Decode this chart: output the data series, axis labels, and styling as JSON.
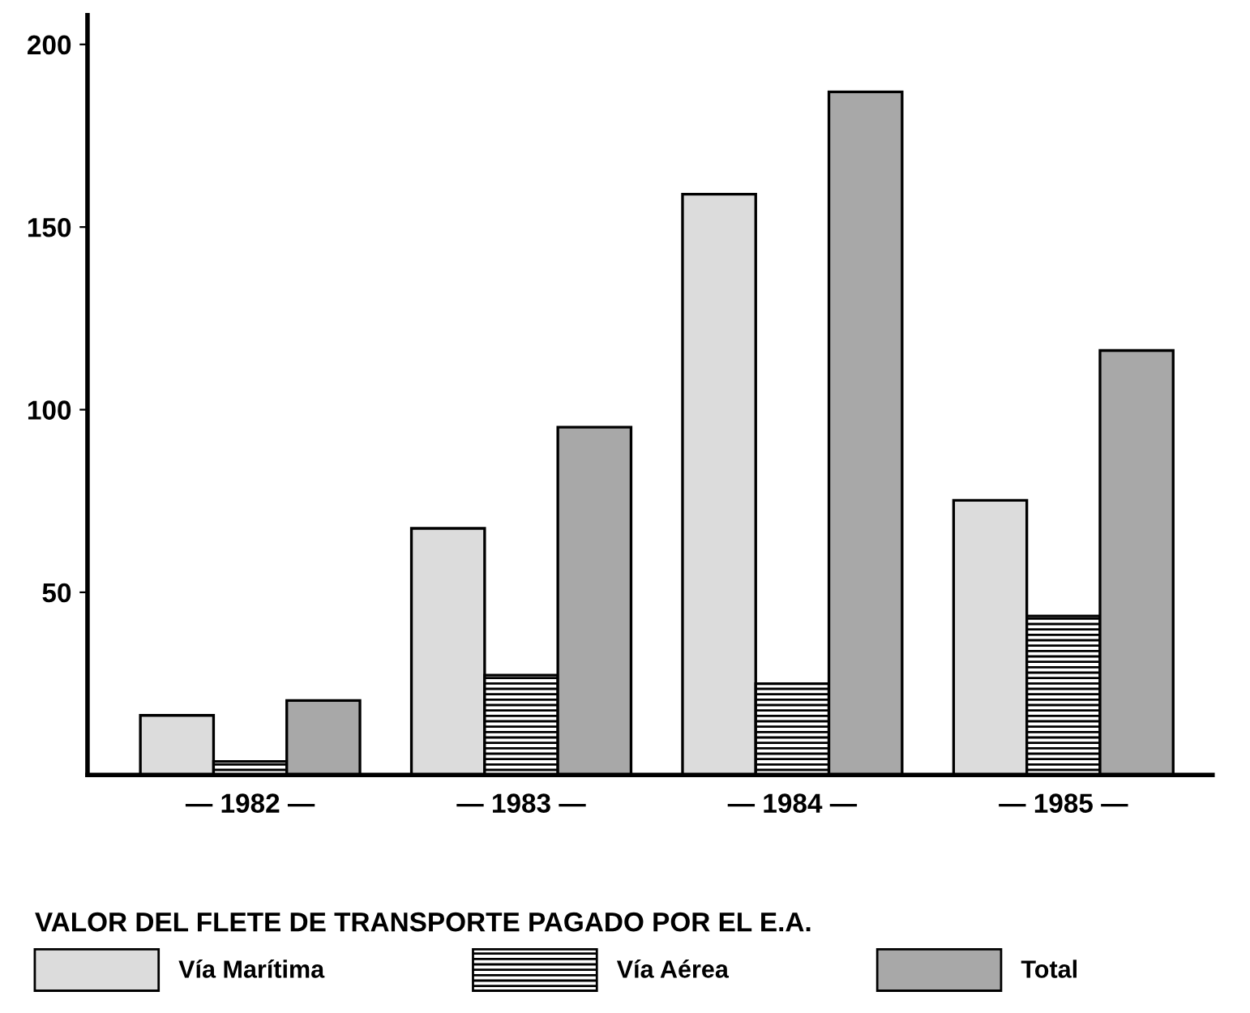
{
  "chart_data": {
    "type": "bar",
    "categories": [
      "— 1982 —",
      "— 1983 —",
      "— 1984 —",
      "— 1985 —"
    ],
    "series": [
      {
        "name": "Vía Marítima",
        "color": "#dcdcdc",
        "values": [
          16.3,
          67.5,
          159,
          75.2
        ]
      },
      {
        "name": "Vía Aérea",
        "color": "#000000",
        "values": [
          3.7,
          27.3,
          25,
          43.5
        ]
      },
      {
        "name": "Total",
        "color": "#a8a8a8",
        "values": [
          20.4,
          95.2,
          187,
          116.2
        ]
      }
    ],
    "legend_title": "VALOR DEL FLETE DE TRANSPORTE PAGADO POR EL E.A.",
    "legend": "bottom",
    "ylim": [
      0,
      208
    ],
    "yticks": [
      50,
      100,
      150,
      200
    ],
    "grid": false
  }
}
